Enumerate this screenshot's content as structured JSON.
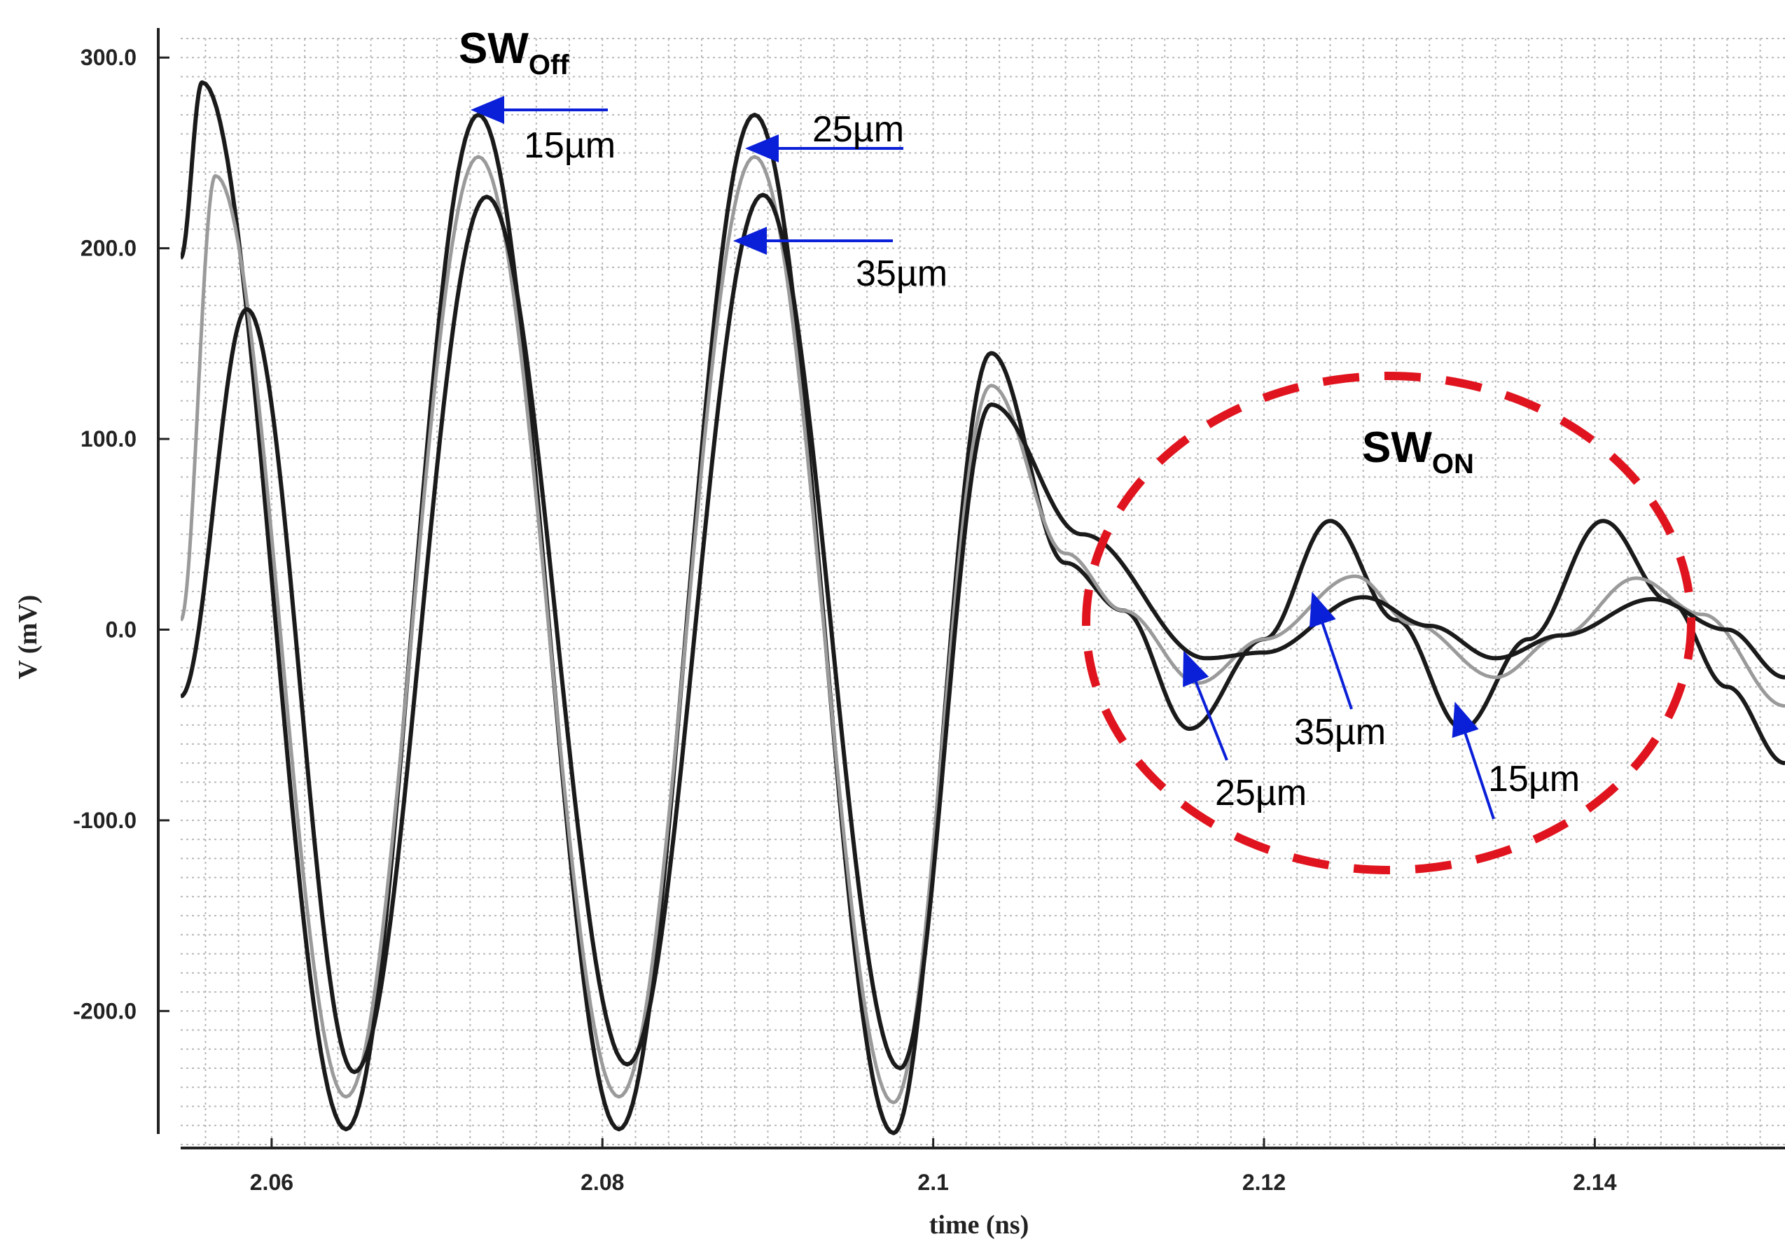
{
  "chart_data": {
    "type": "line",
    "xlabel": "time (ns)",
    "ylabel": "V (mV)",
    "xlim": [
      2.0545,
      2.1515
    ],
    "ylim": [
      -270,
      310
    ],
    "xticks": [
      2.06,
      2.08,
      2.1,
      2.12,
      2.14
    ],
    "xtick_labels": [
      "2.06",
      "2.08",
      "2.1",
      "2.12",
      "2.14"
    ],
    "yticks": [
      300,
      200,
      100,
      0,
      -100,
      -200
    ],
    "ytick_labels": [
      "300.0",
      "200.0",
      "100.0",
      "0.0",
      "-100.0",
      "-200.0"
    ],
    "grid": true,
    "series": [
      {
        "color": "#1a1a1a",
        "x": [
          2.0545,
          2.0558,
          2.0645,
          2.0725,
          2.081,
          2.0892,
          2.0976,
          2.1035,
          2.108,
          2.1115,
          2.1155,
          2.12,
          2.124,
          2.128,
          2.132,
          2.136,
          2.1405,
          2.1445,
          2.148,
          2.1515
        ],
        "y": [
          195,
          287,
          -262,
          270,
          -262,
          270,
          -264,
          145,
          35,
          10,
          -52,
          -5,
          57,
          5,
          -52,
          -5,
          57,
          15,
          -30,
          -70
        ]
      },
      {
        "color": "#9a9a9a",
        "x": [
          2.0545,
          2.0566,
          2.0645,
          2.0725,
          2.081,
          2.0892,
          2.0976,
          2.1035,
          2.108,
          2.1115,
          2.116,
          2.12,
          2.1255,
          2.129,
          2.134,
          2.138,
          2.1425,
          2.1465,
          2.1515
        ],
        "y": [
          5,
          238,
          -245,
          248,
          -245,
          248,
          -248,
          128,
          40,
          10,
          -28,
          -5,
          28,
          3,
          -25,
          -3,
          27,
          8,
          -40
        ]
      },
      {
        "color": "#1a1a1a",
        "x": [
          2.0545,
          2.0585,
          2.065,
          2.073,
          2.0815,
          2.0897,
          2.098,
          2.1035,
          2.109,
          2.1165,
          2.12,
          2.126,
          2.13,
          2.134,
          2.138,
          2.1435,
          2.148,
          2.1515
        ],
        "y": [
          -35,
          168,
          -232,
          227,
          -228,
          228,
          -230,
          118,
          50,
          -15,
          -12,
          17,
          2,
          -15,
          -3,
          16,
          0,
          -25
        ]
      }
    ],
    "annotations": {
      "sw_off_main": "SW",
      "sw_off_sub": "Off",
      "sw_on_main": "SW",
      "sw_on_sub": "ON",
      "label_15_top": "15µm",
      "label_25_top": "25µm",
      "label_35_top": "35µm",
      "label_25_bottom": "25µm",
      "label_35_bottom": "35µm",
      "label_15_bottom": "15µm"
    },
    "highlight_color": "#e0141e",
    "arrow_color": "#0a1fd8"
  }
}
